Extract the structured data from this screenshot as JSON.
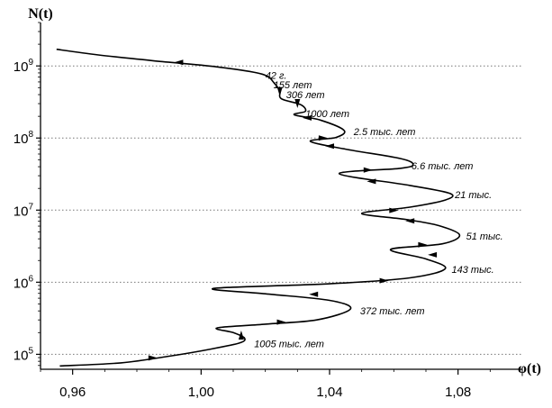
{
  "chart_data": {
    "type": "line",
    "xlabel": "φ(t)",
    "ylabel": "N(t)",
    "xscale": "linear",
    "yscale": "log",
    "xlim": [
      0.95,
      1.1
    ],
    "ylim": [
      62000,
      4000000000
    ],
    "x_ticks": [
      0.96,
      1.0,
      1.04,
      1.08
    ],
    "x_tick_labels": [
      "0,96",
      "1,00",
      "1,04",
      "1,08"
    ],
    "y_ticks": [
      {
        "value": 100000,
        "base": "10",
        "exp": "5"
      },
      {
        "value": 1000000,
        "base": "10",
        "exp": "6"
      },
      {
        "value": 10000000,
        "base": "10",
        "exp": "7"
      },
      {
        "value": 100000000,
        "base": "10",
        "exp": "8"
      },
      {
        "value": 1000000000,
        "base": "10",
        "exp": "9"
      }
    ],
    "grid": "horizontal dotted",
    "series": [
      {
        "points": [
          [
            0.956,
            69000
          ],
          [
            0.975,
            76000
          ],
          [
            0.99,
            94000
          ],
          [
            1.003,
            118000
          ],
          [
            1.012,
            144000
          ],
          [
            1.0135,
            168000
          ],
          [
            1.01,
            200000
          ],
          [
            1.005,
            232000
          ],
          [
            1.02,
            262000
          ],
          [
            1.036,
            300000
          ],
          [
            1.0465,
            425000
          ],
          [
            1.04,
            560000
          ],
          [
            1.02,
            690000
          ],
          [
            1.004,
            820000
          ],
          [
            1.04,
            950000
          ],
          [
            1.065,
            1150000
          ],
          [
            1.076,
            1540000
          ],
          [
            1.07,
            2100000
          ],
          [
            1.059,
            2850000
          ],
          [
            1.075,
            3400000
          ],
          [
            1.0805,
            4500000
          ],
          [
            1.074,
            6100000
          ],
          [
            1.064,
            7400000
          ],
          [
            1.05,
            9000000
          ],
          [
            1.065,
            11000000
          ],
          [
            1.076,
            13800000
          ],
          [
            1.0775,
            17000000
          ],
          [
            1.065,
            22000000
          ],
          [
            1.043,
            32000000
          ],
          [
            1.062,
            38000000
          ],
          [
            1.066,
            43000000
          ],
          [
            1.062,
            52000000
          ],
          [
            1.045,
            70000000
          ],
          [
            1.034,
            90000000
          ],
          [
            1.042,
            102000000
          ],
          [
            1.0445,
            128000000
          ],
          [
            1.037,
            178000000
          ],
          [
            1.029,
            210000000
          ],
          [
            1.0325,
            235000000
          ],
          [
            1.031,
            290000000
          ],
          [
            1.025,
            350000000
          ],
          [
            1.0245,
            450000000
          ],
          [
            1.023,
            560000000
          ],
          [
            1.019,
            770000000
          ],
          [
            1.005,
            970000000
          ],
          [
            0.985,
            1180000000
          ],
          [
            0.968,
            1420000000
          ],
          [
            0.955,
            1700000000
          ]
        ]
      }
    ],
    "arrows": [
      {
        "x": 0.985,
        "y": 89000,
        "dir": "right"
      },
      {
        "x": 1.0125,
        "y": 185000,
        "dir": "up"
      },
      {
        "x": 1.025,
        "y": 280000,
        "dir": "right"
      },
      {
        "x": 1.035,
        "y": 680000,
        "dir": "left"
      },
      {
        "x": 1.057,
        "y": 1050000,
        "dir": "right"
      },
      {
        "x": 1.072,
        "y": 2400000,
        "dir": "left"
      },
      {
        "x": 1.069,
        "y": 3300000,
        "dir": "right"
      },
      {
        "x": 1.065,
        "y": 7100000,
        "dir": "left"
      },
      {
        "x": 1.06,
        "y": 9900000,
        "dir": "right"
      },
      {
        "x": 1.053,
        "y": 25000000,
        "dir": "left"
      },
      {
        "x": 1.052,
        "y": 36000000,
        "dir": "right"
      },
      {
        "x": 1.04,
        "y": 77000000,
        "dir": "left"
      },
      {
        "x": 1.038,
        "y": 100000000,
        "dir": "right"
      },
      {
        "x": 1.033,
        "y": 190000000,
        "dir": "left"
      },
      {
        "x": 1.03,
        "y": 300000000,
        "dir": "down"
      },
      {
        "x": 1.0245,
        "y": 440000000,
        "dir": "down"
      },
      {
        "x": 0.993,
        "y": 1120000000,
        "dir": "left"
      }
    ],
    "annotations": [
      {
        "text": "42 г.",
        "x": 1.02,
        "y": 740000000
      },
      {
        "text": "155 лет",
        "x": 1.0225,
        "y": 550000000
      },
      {
        "text": "306 лет",
        "x": 1.0265,
        "y": 400000000
      },
      {
        "text": "1000 лет",
        "x": 1.0325,
        "y": 220000000
      },
      {
        "text": "2.5 тыс. лет",
        "x": 1.0475,
        "y": 123000000
      },
      {
        "text": "6.6 тыс. лет",
        "x": 1.0655,
        "y": 41500000
      },
      {
        "text": "21 тыс.",
        "x": 1.079,
        "y": 16500000
      },
      {
        "text": "51 тыс.",
        "x": 1.0825,
        "y": 4400000
      },
      {
        "text": "143 тыс.",
        "x": 1.078,
        "y": 1500000
      },
      {
        "text": "372 тыс. лет",
        "x": 1.0495,
        "y": 400000
      },
      {
        "text": "1005 тыс. лет",
        "x": 1.0165,
        "y": 140000
      }
    ]
  }
}
